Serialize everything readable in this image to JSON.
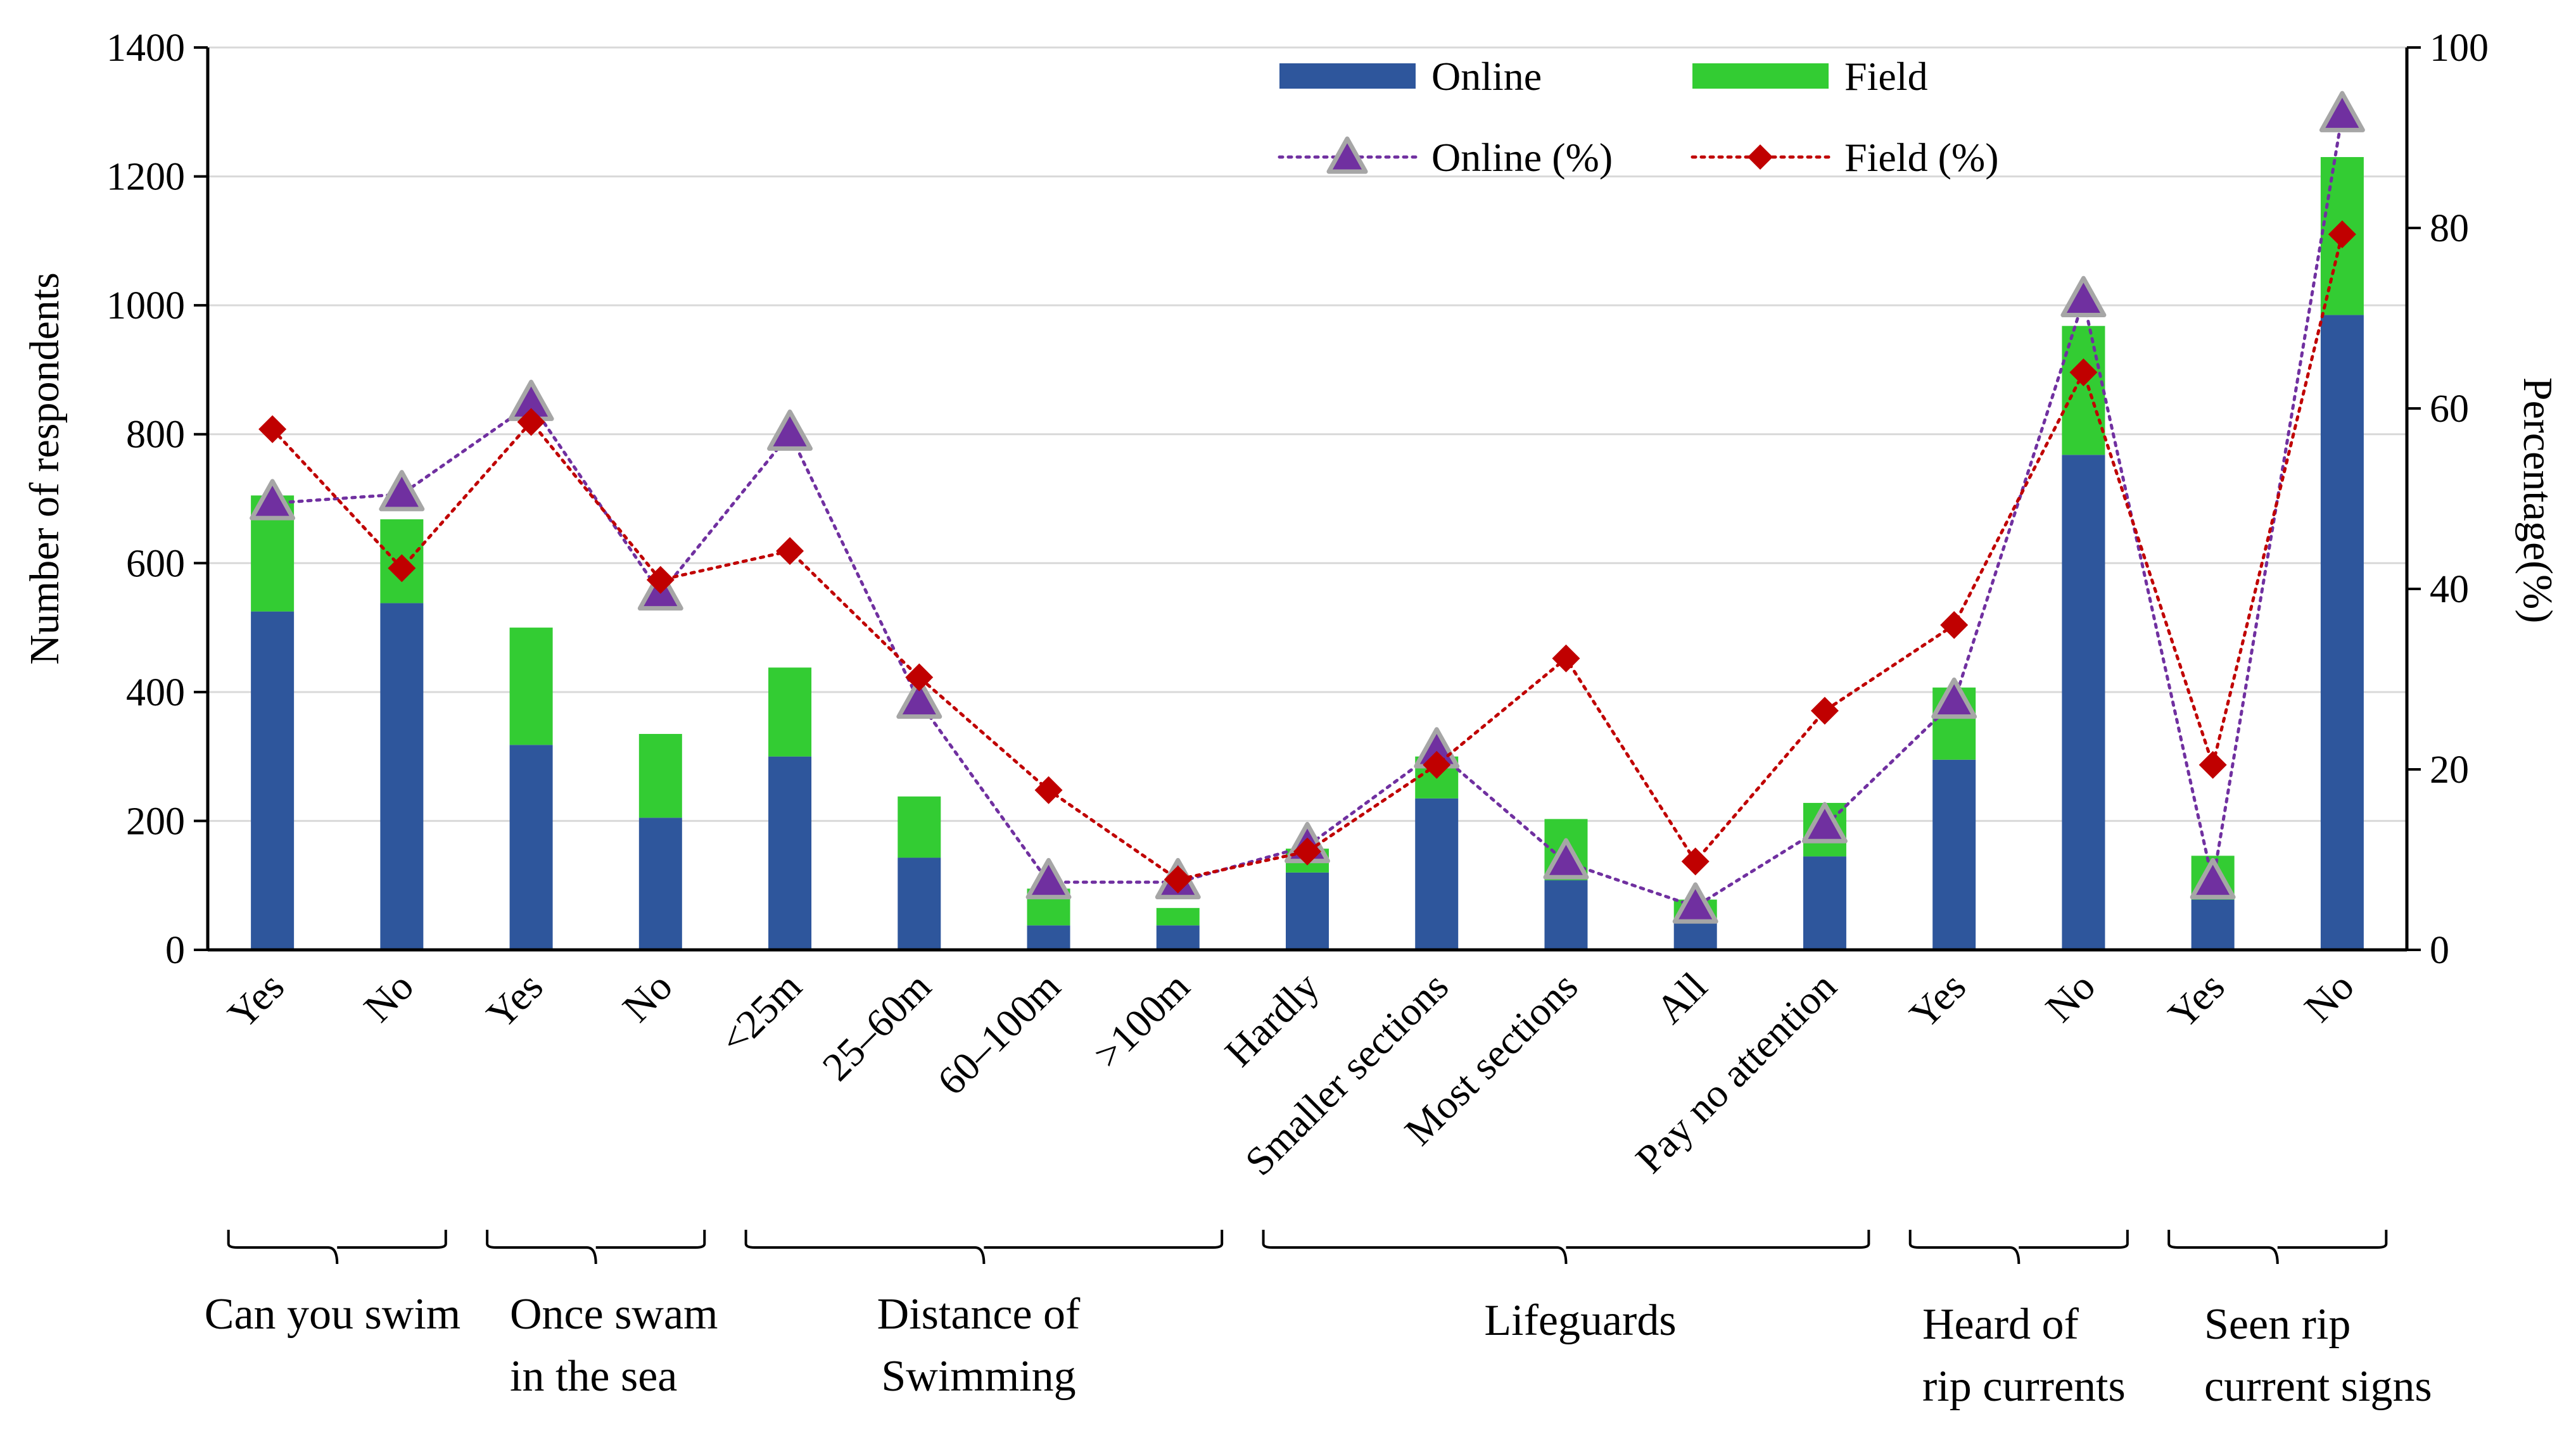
{
  "chart_data": {
    "type": "bar",
    "stacked": true,
    "categories": [
      "Yes",
      "No",
      "Yes",
      "No",
      "<25m",
      "25–60m",
      "60–100m",
      ">100m",
      "Hardly",
      "Smaller sections",
      "Most sections",
      "All",
      "Pay no attention",
      "Yes",
      "No",
      "Yes",
      "No"
    ],
    "groups": [
      {
        "label_lines": [
          "Can you swim"
        ],
        "start": 0,
        "end": 1
      },
      {
        "label_lines": [
          "Once swam",
          "in the sea"
        ],
        "start": 2,
        "end": 3
      },
      {
        "label_lines": [
          "Distance of",
          "Swimming"
        ],
        "start": 4,
        "end": 7
      },
      {
        "label_lines": [
          "Lifeguards"
        ],
        "start": 8,
        "end": 12
      },
      {
        "label_lines": [
          "Heard of",
          "rip currents"
        ],
        "start": 13,
        "end": 14
      },
      {
        "label_lines": [
          "Seen rip",
          "current signs"
        ],
        "start": 15,
        "end": 16
      }
    ],
    "series": [
      {
        "name": "Online",
        "kind": "bar",
        "axis": "left",
        "color": "#2e569c",
        "values": [
          525,
          538,
          318,
          205,
          300,
          143,
          38,
          38,
          120,
          235,
          108,
          45,
          145,
          295,
          768,
          78,
          985
        ]
      },
      {
        "name": "Field",
        "kind": "bar",
        "axis": "left",
        "color": "#33cc33",
        "values": [
          180,
          130,
          182,
          130,
          138,
          95,
          57,
          27,
          37,
          65,
          95,
          33,
          83,
          112,
          200,
          68,
          245
        ]
      },
      {
        "name": "Online (%)",
        "kind": "line",
        "axis": "right",
        "color": "#7030a0",
        "marker": "triangle",
        "marker_fill": "#7030a0",
        "marker_stroke": "#a6a6a6",
        "values": [
          49.5,
          50.5,
          60.5,
          39.5,
          57.2,
          27.5,
          7.5,
          7.5,
          11.5,
          22,
          9.7,
          4.8,
          13.7,
          27.5,
          72,
          7.5,
          92.5
        ]
      },
      {
        "name": "Field (%)",
        "kind": "line",
        "axis": "right",
        "color": "#c00000",
        "marker": "diamond",
        "marker_fill": "#c00000",
        "values": [
          57.7,
          42.3,
          58.5,
          41,
          44.2,
          30.2,
          17.7,
          7.8,
          10.9,
          20.5,
          32.3,
          9.8,
          26.5,
          36,
          64,
          20.5,
          79.3
        ]
      }
    ],
    "y_left": {
      "label": "Number of respondents",
      "min": 0,
      "max": 1400,
      "ticks": [
        "0",
        "200",
        "400",
        "600",
        "800",
        "1000",
        "1200",
        "1400"
      ]
    },
    "y_right": {
      "label": "Percentage(%)",
      "min": 0,
      "max": 100,
      "ticks": [
        "0",
        "20",
        "40",
        "60",
        "80",
        "100"
      ]
    },
    "grid": {
      "horizontal": true,
      "color": "#d9d9d9"
    },
    "legend": {
      "placement": "top-center",
      "columns": 2
    }
  }
}
